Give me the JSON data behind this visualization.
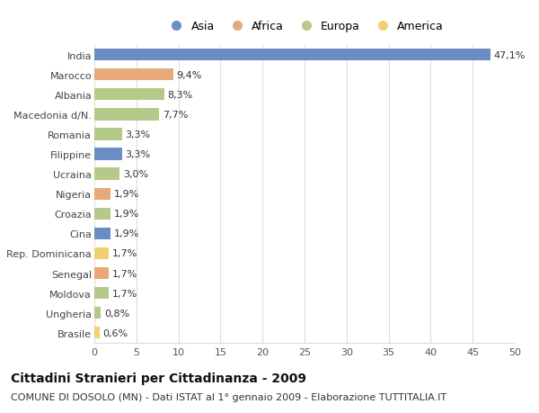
{
  "countries": [
    "India",
    "Marocco",
    "Albania",
    "Macedonia d/N.",
    "Romania",
    "Filippine",
    "Ucraina",
    "Nigeria",
    "Croazia",
    "Cina",
    "Rep. Dominicana",
    "Senegal",
    "Moldova",
    "Ungheria",
    "Brasile"
  ],
  "values": [
    47.1,
    9.4,
    8.3,
    7.7,
    3.3,
    3.3,
    3.0,
    1.9,
    1.9,
    1.9,
    1.7,
    1.7,
    1.7,
    0.8,
    0.6
  ],
  "labels": [
    "47,1%",
    "9,4%",
    "8,3%",
    "7,7%",
    "3,3%",
    "3,3%",
    "3,0%",
    "1,9%",
    "1,9%",
    "1,9%",
    "1,7%",
    "1,7%",
    "1,7%",
    "0,8%",
    "0,6%"
  ],
  "continents": [
    "Asia",
    "Africa",
    "Europa",
    "Europa",
    "Europa",
    "Asia",
    "Europa",
    "Africa",
    "Europa",
    "Asia",
    "America",
    "Africa",
    "Europa",
    "Europa",
    "America"
  ],
  "continent_colors": {
    "Asia": "#6b8dc4",
    "Africa": "#e8a97a",
    "Europa": "#b5c98a",
    "America": "#f0d070"
  },
  "legend_order": [
    "Asia",
    "Africa",
    "Europa",
    "America"
  ],
  "title": "Cittadini Stranieri per Cittadinanza - 2009",
  "subtitle": "COMUNE DI DOSOLO (MN) - Dati ISTAT al 1° gennaio 2009 - Elaborazione TUTTITALIA.IT",
  "xlim": [
    0,
    50
  ],
  "xticks": [
    0,
    5,
    10,
    15,
    20,
    25,
    30,
    35,
    40,
    45,
    50
  ],
  "background_color": "#ffffff",
  "grid_color": "#dddddd",
  "bar_height": 0.6,
  "title_fontsize": 10,
  "subtitle_fontsize": 8,
  "label_fontsize": 8,
  "tick_fontsize": 8,
  "legend_fontsize": 9
}
